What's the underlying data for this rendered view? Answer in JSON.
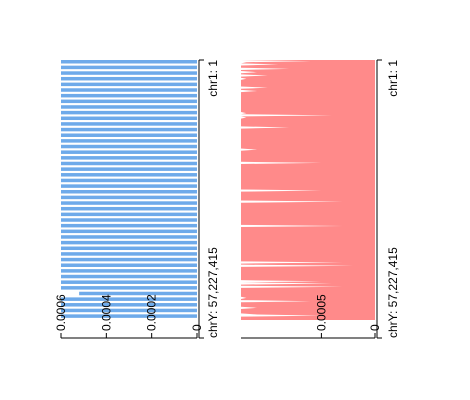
{
  "colors": {
    "left_series": "#6eaaea",
    "right_series": "#ff8a8a",
    "axis": "#000000",
    "background": "#ffffff"
  },
  "chart_data": [
    {
      "type": "bar",
      "orientation": "horizontal-rotated",
      "series": [
        {
          "values": [
            0.0006,
            0.0006,
            0.0006,
            0.0006,
            0.0006,
            0.0006,
            0.0006,
            0.0006,
            0.0006,
            0.0006,
            0.0006,
            0.0006,
            0.0006,
            0.0006,
            0.0006,
            0.0006,
            0.0006,
            0.0006,
            0.0006,
            0.0006,
            0.0006,
            0.0006,
            0.0006,
            0.0006,
            0.0006,
            0.0006,
            0.0006,
            0.0006,
            0.0006,
            0.0006,
            0.0006,
            0.0006,
            0.0006,
            0.0006,
            0.0006,
            0.0006,
            0.0006,
            0.0006,
            0.0006,
            0.0006,
            0.0006,
            0.00052,
            0.0006,
            0.0006,
            0.0006,
            0.0006
          ]
        }
      ],
      "value_ticks": [
        {
          "value": 0,
          "label": "0"
        },
        {
          "value": 0.0002,
          "label": "0.0002"
        },
        {
          "value": 0.0004,
          "label": "0.0004"
        },
        {
          "value": 0.0006,
          "label": "0.0006"
        }
      ],
      "ylim": [
        0,
        0.0006
      ],
      "position_labels": {
        "start": "chr1: 1",
        "end": "chrY: 57,227,415"
      }
    },
    {
      "type": "area",
      "orientation": "horizontal-rotated",
      "series": [
        {
          "values": [
            0.00125,
            0.0006,
            0.0012,
            0.00125,
            0.0009,
            0.00125,
            0.00125,
            0.00125,
            0.0008,
            0.00125,
            0.00125,
            0.0011,
            0.00125,
            0.00125,
            0.001,
            0.00125,
            0.00125,
            0.0012,
            0.00125,
            0.00125,
            0.00125,
            0.00125,
            0.00125,
            0.00125,
            0.00125,
            0.001,
            0.00125,
            0.00125,
            0.0011,
            0.00125,
            0.00125,
            0.00125,
            0.00125,
            0.00125,
            0.00125,
            0.00125,
            0.00125,
            0.00125,
            0.00125,
            0.00125,
            0.00125,
            0.00125,
            0.00125,
            0.00125,
            0.00125,
            0.00125,
            0.00125,
            0.00125,
            0.0012,
            0.00125,
            0.0004,
            0.00125,
            0.0012,
            0.00125,
            0.00125,
            0.00125,
            0.00125,
            0.00125,
            0.00125,
            0.00125,
            0.00125,
            0.0008,
            0.00125,
            0.00125,
            0.00125,
            0.00125,
            0.00125,
            0.00125,
            0.00125,
            0.00125,
            0.00125,
            0.00125,
            0.00125,
            0.00125,
            0.00125,
            0.00125,
            0.00125,
            0.00125,
            0.00125,
            0.00125,
            0.00125,
            0.0011,
            0.00125,
            0.00125,
            0.00125,
            0.00125,
            0.00125,
            0.00125,
            0.00125,
            0.00125,
            0.00125,
            0.00125,
            0.00125,
            0.0005,
            0.00125,
            0.00125,
            0.00125,
            0.00125,
            0.00125,
            0.00125,
            0.00125,
            0.00125,
            0.00125,
            0.00125,
            0.00125,
            0.00125,
            0.00125,
            0.00125,
            0.00125,
            0.00125,
            0.00125,
            0.00125,
            0.00125,
            0.00125,
            0.00125,
            0.00125,
            0.00125,
            0.00125,
            0.0005,
            0.00125,
            0.00125,
            0.00125,
            0.00125,
            0.00125,
            0.00125,
            0.00125,
            0.00125,
            0.00125,
            0.0003,
            0.00125,
            0.00125,
            0.00125,
            0.00125,
            0.00125,
            0.00125,
            0.00125,
            0.00125,
            0.00125,
            0.00125,
            0.00125,
            0.00125,
            0.00125,
            0.00125,
            0.00125,
            0.00125,
            0.00125,
            0.00125,
            0.00125,
            0.00125,
            0.00125,
            0.0003,
            0.00125,
            0.00125,
            0.00125,
            0.00125,
            0.00125,
            0.00125,
            0.00125,
            0.00125,
            0.00125,
            0.00125,
            0.00125,
            0.00125,
            0.00125,
            0.00125,
            0.00125,
            0.00125,
            0.00125,
            0.00125,
            0.00125,
            0.00125,
            0.00125,
            0.00125,
            0.00125,
            0.00125,
            0.00125,
            0.00125,
            0.00125,
            0.00125,
            0.00125,
            0.00125,
            0.00125,
            0.00125,
            0.0003,
            0.00125,
            0.00125,
            0.0002,
            0.00125,
            0.00125,
            0.00125,
            0.00125,
            0.00125,
            0.00125,
            0.00125,
            0.00125,
            0.00125,
            0.00125,
            0.00125,
            0.00125,
            0.00125,
            0.0005,
            0.00125,
            0.0004,
            0.00125,
            0.00125,
            0.0003,
            0.00125,
            0.00125,
            0.00125,
            0.00125,
            0.00125,
            0.00125,
            0.00125,
            0.00125,
            0.00125,
            0.0012,
            0.00125,
            0.00125,
            0.0006,
            0.00125,
            0.00125,
            0.00125,
            0.00125,
            0.00125,
            0.0011,
            0.00125,
            0.00125,
            0.00125,
            0.00125,
            0.00125,
            0.0011,
            0.0005,
            0.00125,
            0.00125,
            0.00125,
            0.00125
          ]
        }
      ],
      "value_ticks": [
        {
          "value": 0,
          "label": "0"
        },
        {
          "value": 0.0005,
          "label": "0.0005"
        }
      ],
      "ylim": [
        0,
        0.00125
      ],
      "position_labels": {
        "start": "chr1: 1",
        "end": "chrY: 57,227,415"
      }
    }
  ]
}
